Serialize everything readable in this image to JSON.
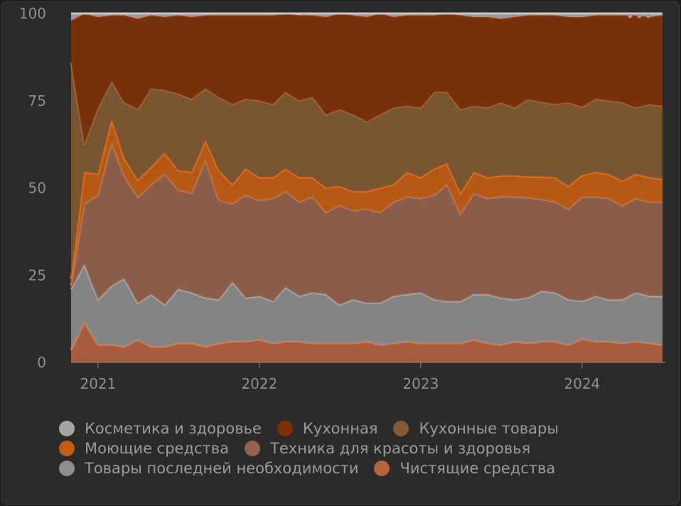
{
  "menu": {
    "icon": "more-horizontal-icon",
    "glyph": "•••"
  },
  "chart_data": {
    "type": "area",
    "stacked": true,
    "normalized_percent": true,
    "title": "",
    "xlabel": "",
    "ylabel": "",
    "ylim": [
      0,
      100
    ],
    "yticks": [
      "0",
      "25",
      "50",
      "75",
      "100"
    ],
    "xticks": [
      {
        "label": "2021",
        "date": "2021-01-01"
      },
      {
        "label": "2022",
        "date": "2022-01-01"
      },
      {
        "label": "2023",
        "date": "2023-01-01"
      },
      {
        "label": "2024",
        "date": "2024-01-01"
      }
    ],
    "xlim": [
      "2020-11-01",
      "2024-07-01"
    ],
    "grid": false,
    "legend_position": "bottom",
    "x": [
      "2020-11",
      "2020-12",
      "2021-01",
      "2021-02",
      "2021-03",
      "2021-04",
      "2021-05",
      "2021-06",
      "2021-07",
      "2021-08",
      "2021-09",
      "2021-10",
      "2021-11",
      "2021-12",
      "2022-01",
      "2022-02",
      "2022-03",
      "2022-04",
      "2022-05",
      "2022-06",
      "2022-07",
      "2022-08",
      "2022-09",
      "2022-10",
      "2022-11",
      "2022-12",
      "2023-01",
      "2023-02",
      "2023-03",
      "2023-04",
      "2023-05",
      "2023-06",
      "2023-07",
      "2023-08",
      "2023-09",
      "2023-10",
      "2023-11",
      "2023-12",
      "2024-01",
      "2024-02",
      "2024-03",
      "2024-04",
      "2024-05",
      "2024-06",
      "2024-07"
    ],
    "series": [
      {
        "name": "Чистящие средства",
        "color": "#b5633f",
        "values": [
          3.5,
          11.5,
          5,
          5,
          4.5,
          6.5,
          4.5,
          4.5,
          5.5,
          5.5,
          4.5,
          5.5,
          6,
          6,
          6.5,
          5.5,
          6,
          6,
          5.5,
          5.5,
          5.5,
          5.5,
          6,
          5,
          5.5,
          6,
          5.5,
          5.5,
          5.5,
          5.5,
          6.5,
          5.5,
          5,
          6,
          5.5,
          6,
          6,
          5,
          6.5,
          6,
          6,
          5.5,
          6,
          5.5,
          5
        ]
      },
      {
        "name": "Товары последней необходимости",
        "color": "#8e8e8e",
        "values": [
          17.5,
          16.5,
          13,
          17,
          19.5,
          10.5,
          15,
          12,
          15.5,
          14.5,
          14,
          12.5,
          17,
          12.5,
          12.5,
          12,
          15.5,
          13,
          14.5,
          14,
          11,
          12.5,
          11,
          12,
          13.5,
          13.5,
          14.5,
          12.5,
          12,
          12,
          13,
          14,
          13.5,
          12,
          13,
          14.5,
          14,
          13,
          10.5,
          13,
          12,
          12.5,
          14,
          13.5,
          14
        ]
      },
      {
        "name": "Техника для красоты и здоровья",
        "color": "#93634e",
        "values": [
          1,
          17.5,
          30,
          41,
          29.5,
          30.5,
          31.5,
          37.5,
          28.5,
          28.5,
          39.5,
          28.5,
          22.5,
          29.5,
          27.5,
          29.5,
          27.5,
          27,
          27.5,
          23.5,
          28.5,
          25.5,
          27,
          26,
          27,
          28,
          27,
          30,
          33.5,
          25,
          29,
          27.5,
          29,
          29.5,
          28.5,
          26.5,
          26,
          26,
          29,
          28.5,
          29,
          27,
          27,
          27,
          27
        ]
      },
      {
        "name": "Моющие средства",
        "color": "#c35d14",
        "values": [
          2,
          9,
          6,
          6.5,
          5,
          5,
          5,
          6,
          5.5,
          6,
          5.5,
          8.5,
          5.5,
          7.5,
          6.5,
          6,
          6.5,
          7,
          5.5,
          7,
          5.5,
          5.5,
          5,
          7,
          5,
          7,
          6,
          7.5,
          6,
          6,
          6,
          6,
          6,
          6,
          6,
          6.5,
          7,
          6.5,
          6,
          7,
          7,
          7,
          7,
          7,
          6.5
        ]
      },
      {
        "name": "Кухонные товары",
        "color": "#835a33",
        "values": [
          62,
          8,
          19,
          11,
          16,
          20.5,
          22.5,
          18,
          22,
          21,
          15,
          21,
          23,
          20,
          22,
          21,
          22,
          22,
          23,
          21,
          22,
          22,
          20,
          21,
          22,
          19,
          20,
          22,
          20.5,
          24,
          19,
          20,
          21,
          19.5,
          22,
          21.5,
          21,
          24,
          19,
          21,
          21,
          22.5,
          19,
          21,
          21
        ]
      },
      {
        "name": "Кухонная",
        "color": "#7f3107",
        "values": [
          12,
          37.5,
          26,
          19,
          25,
          26,
          21,
          21,
          22.5,
          23.5,
          21,
          23.5,
          25.5,
          24,
          24.5,
          25.5,
          22.5,
          24.5,
          23.5,
          28,
          27.5,
          28.5,
          30,
          29,
          26,
          26,
          26.5,
          22,
          22.5,
          27,
          25.5,
          26,
          24,
          26,
          24,
          25,
          25.5,
          24.5,
          25,
          24,
          24.5,
          25,
          26.5,
          25,
          26
        ]
      },
      {
        "name": "Косметика и здоровье",
        "color": "#a4a4a4",
        "values": [
          2,
          0,
          1,
          0.5,
          0.5,
          1.5,
          0.5,
          1,
          0.5,
          1,
          0.5,
          0.5,
          0.5,
          0.5,
          0.5,
          0.5,
          0,
          0.5,
          0.5,
          1,
          0,
          0.5,
          1,
          0,
          1,
          0.5,
          0.5,
          0.5,
          0,
          0.5,
          1,
          1,
          1.5,
          1,
          0.5,
          0.5,
          0.5,
          1,
          1,
          0.5,
          0.5,
          0.5,
          0.5,
          1,
          0.5
        ]
      }
    ],
    "legend_rows": [
      [
        "Косметика и здоровье",
        "Кухонная",
        "Кухонные товары"
      ],
      [
        "Моющие средства",
        "Техника для красоты и здоровья"
      ],
      [
        "Товары последней необходимости",
        "Чистящие средства"
      ]
    ]
  }
}
